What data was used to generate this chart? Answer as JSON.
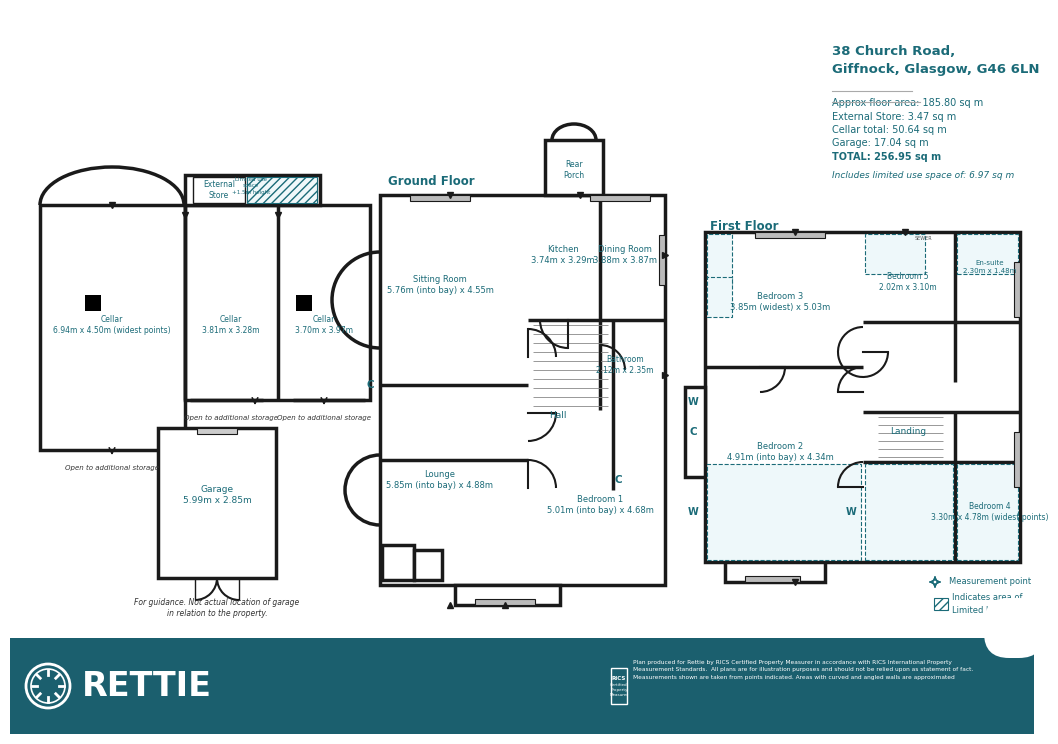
{
  "title_address": "38 Church Road,\nGiffnock, Glasgow, G46 6LN",
  "stats": [
    "Approx floor area: 185.80 sq m",
    "External Store: 3.47 sq m",
    "Cellar total: 50.64 sq m",
    "Garage: 17.04 sq m",
    "TOTAL: 256.95 sq m"
  ],
  "limited_use_note": "Includes limited use space of: 6.97 sq m",
  "footer_text": "Plan produced for Rettie by RICS Certified Property Measurer in accordance with RICS International Property\nMeasurement Standards.  All plans are for illustration purposes and should not be relied upon as statement of fact.\nMeasurements shown are taken from points indicated. Areas with curved and angled walls are approximated",
  "brand_name": "RETTIE",
  "ground_floor_label": "Ground Floor",
  "first_floor_label": "First Floor",
  "bg_color": "#FFFFFF",
  "wall_color": "#1A1A1A",
  "teal_color": "#1B6B78",
  "footer_bg": "#1B5F6E",
  "rooms": {
    "sitting_room": "Sitting Room\n5.76m (into bay) x 4.55m",
    "kitchen": "Kitchen\n3.74m x 3.29m",
    "dining_room": "Dining Room\n3.88m x 3.87m",
    "hall": "Hall",
    "lounge": "Lounge\n5.85m (into bay) x 4.88m",
    "bedroom1": "Bedroom 1\n5.01m (into bay) x 4.68m",
    "bathroom": "Bathroom\n2.12m x 2.35m",
    "rear_porch": "Rear\nPorch",
    "bedroom2": "Bedroom 2\n4.91m (into bay) x 4.34m",
    "bedroom3": "Bedroom 3\n3.85m (widest) x 5.03m",
    "bedroom4": "Bedroom 4\n3.30m x 4.78m (widest points)",
    "bedroom5": "Bedroom 5\n2.02m x 3.10m",
    "ensuite": "En-suite\n2.30m x 1.48m",
    "landing": "Landing",
    "cellar1": "Cellar\n6.94m x 4.50m (widest points)",
    "cellar2": "Cellar\n3.81m x 3.28m",
    "cellar3": "Cellar\n3.70m x 3.97m",
    "external_store": "External\nStore",
    "garage": "Garage\n5.99m x 2.85m"
  },
  "measurement_point_label": "Measurement point",
  "limited_use_label": "Indicates area of\nLimited Use Space"
}
